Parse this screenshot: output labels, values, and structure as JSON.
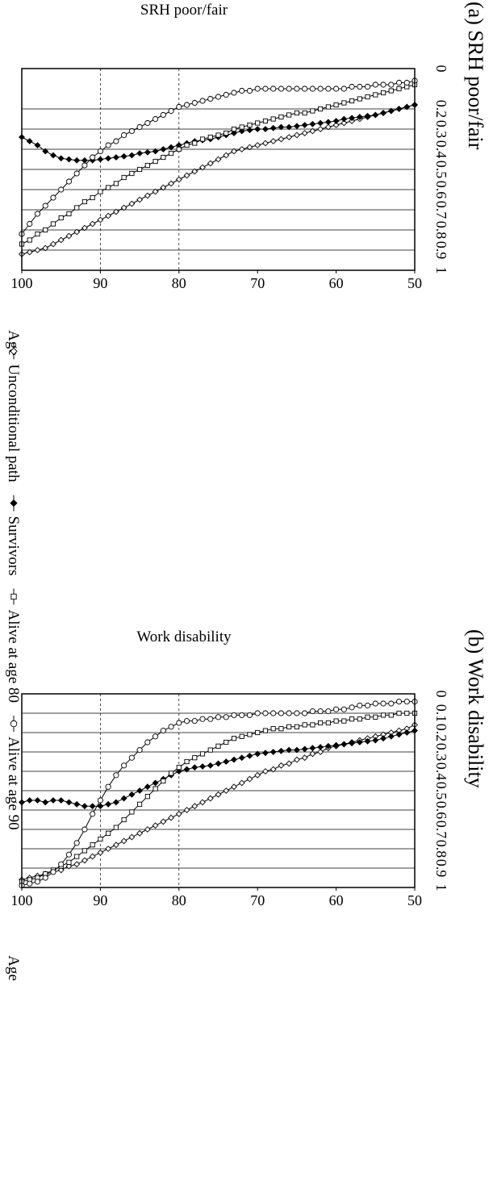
{
  "legend": {
    "items": [
      {
        "label": "Unconditional path",
        "marker": "diamond-open"
      },
      {
        "label": "Survivors",
        "marker": "diamond-filled"
      },
      {
        "label": "Alive at age 80",
        "marker": "square-open"
      },
      {
        "label": "Alive at age 90",
        "marker": "circle-open"
      }
    ]
  },
  "colors": {
    "ink": "#000000",
    "paper": "#ffffff",
    "grid": "#000000"
  },
  "chart_data": [
    {
      "type": "line",
      "title": "(a) SRH poor/fair",
      "xlabel": "Age",
      "ylabel": "SRH poor/fair",
      "xlim": [
        50,
        100
      ],
      "ylim": [
        0,
        1
      ],
      "x_ticks": [
        50,
        60,
        70,
        80,
        90,
        100
      ],
      "y_ticks": [
        0,
        0.2,
        0.3,
        0.4,
        0.5,
        0.6,
        0.7,
        0.8,
        0.9,
        1
      ],
      "x_tick_labels": [
        "50",
        "60",
        "70",
        "80",
        "90",
        "100"
      ],
      "y_tick_labels": [
        "0",
        "0.2",
        "0.3",
        "0.4",
        "0.5",
        "0.6",
        "0.7",
        "0.8",
        "0.9",
        "1"
      ],
      "grid": {
        "horizontal": true,
        "vertical_dashed_at": [
          80,
          90
        ]
      },
      "x": [
        50,
        51,
        52,
        53,
        54,
        55,
        56,
        57,
        58,
        59,
        60,
        61,
        62,
        63,
        64,
        65,
        66,
        67,
        68,
        69,
        70,
        71,
        72,
        73,
        74,
        75,
        76,
        77,
        78,
        79,
        80,
        81,
        82,
        83,
        84,
        85,
        86,
        87,
        88,
        89,
        90,
        91,
        92,
        93,
        94,
        95,
        96,
        97,
        98,
        99,
        100
      ],
      "series": [
        {
          "name": "Unconditional path",
          "marker": "diamond-open",
          "values": [
            0.18,
            0.19,
            0.2,
            0.21,
            0.22,
            0.23,
            0.24,
            0.25,
            0.26,
            0.27,
            0.28,
            0.29,
            0.3,
            0.31,
            0.32,
            0.33,
            0.34,
            0.35,
            0.36,
            0.37,
            0.38,
            0.39,
            0.4,
            0.41,
            0.43,
            0.45,
            0.47,
            0.49,
            0.51,
            0.53,
            0.55,
            0.57,
            0.59,
            0.61,
            0.63,
            0.65,
            0.67,
            0.69,
            0.71,
            0.73,
            0.75,
            0.77,
            0.79,
            0.81,
            0.83,
            0.85,
            0.87,
            0.89,
            0.9,
            0.91,
            0.92
          ]
        },
        {
          "name": "Survivors",
          "marker": "diamond-filled",
          "values": [
            0.18,
            0.19,
            0.2,
            0.21,
            0.22,
            0.23,
            0.235,
            0.24,
            0.245,
            0.25,
            0.26,
            0.265,
            0.27,
            0.275,
            0.28,
            0.285,
            0.29,
            0.29,
            0.295,
            0.3,
            0.3,
            0.305,
            0.31,
            0.32,
            0.33,
            0.34,
            0.35,
            0.355,
            0.36,
            0.37,
            0.38,
            0.39,
            0.4,
            0.41,
            0.415,
            0.42,
            0.43,
            0.435,
            0.44,
            0.445,
            0.45,
            0.455,
            0.455,
            0.455,
            0.45,
            0.445,
            0.43,
            0.41,
            0.38,
            0.36,
            0.34
          ]
        },
        {
          "name": "Alive at age 80",
          "marker": "square-open",
          "values": [
            0.08,
            0.09,
            0.1,
            0.11,
            0.12,
            0.13,
            0.14,
            0.15,
            0.16,
            0.17,
            0.18,
            0.19,
            0.2,
            0.21,
            0.22,
            0.22,
            0.23,
            0.24,
            0.25,
            0.26,
            0.27,
            0.28,
            0.29,
            0.3,
            0.32,
            0.33,
            0.34,
            0.35,
            0.37,
            0.38,
            0.4,
            0.42,
            0.44,
            0.46,
            0.48,
            0.5,
            0.52,
            0.54,
            0.57,
            0.59,
            0.61,
            0.64,
            0.66,
            0.69,
            0.72,
            0.74,
            0.77,
            0.8,
            0.82,
            0.85,
            0.87
          ]
        },
        {
          "name": "Alive at age 90",
          "marker": "circle-open",
          "values": [
            0.06,
            0.07,
            0.07,
            0.08,
            0.08,
            0.08,
            0.09,
            0.09,
            0.09,
            0.1,
            0.1,
            0.1,
            0.1,
            0.1,
            0.1,
            0.1,
            0.1,
            0.1,
            0.1,
            0.1,
            0.1,
            0.11,
            0.11,
            0.12,
            0.13,
            0.14,
            0.15,
            0.16,
            0.17,
            0.18,
            0.19,
            0.21,
            0.23,
            0.25,
            0.27,
            0.29,
            0.31,
            0.33,
            0.36,
            0.38,
            0.41,
            0.44,
            0.48,
            0.52,
            0.56,
            0.6,
            0.64,
            0.68,
            0.72,
            0.77,
            0.82
          ]
        }
      ]
    },
    {
      "type": "line",
      "title": "(b) Work disability",
      "xlabel": "Age",
      "ylabel": "Work disability",
      "xlim": [
        50,
        100
      ],
      "ylim": [
        0,
        1
      ],
      "x_ticks": [
        50,
        60,
        70,
        80,
        90,
        100
      ],
      "y_ticks": [
        0,
        0.1,
        0.2,
        0.3,
        0.4,
        0.5,
        0.6,
        0.7,
        0.8,
        0.9,
        1
      ],
      "x_tick_labels": [
        "50",
        "60",
        "70",
        "80",
        "90",
        "100"
      ],
      "y_tick_labels": [
        "0",
        "0.1",
        "0.2",
        "0.3",
        "0.4",
        "0.5",
        "0.6",
        "0.7",
        "0.8",
        "0.9",
        "1"
      ],
      "grid": {
        "horizontal": true,
        "vertical_dashed_at": [
          80,
          90
        ]
      },
      "x": [
        50,
        51,
        52,
        53,
        54,
        55,
        56,
        57,
        58,
        59,
        60,
        61,
        62,
        63,
        64,
        65,
        66,
        67,
        68,
        69,
        70,
        71,
        72,
        73,
        74,
        75,
        76,
        77,
        78,
        79,
        80,
        81,
        82,
        83,
        84,
        85,
        86,
        87,
        88,
        89,
        90,
        91,
        92,
        93,
        94,
        95,
        96,
        97,
        98,
        99,
        100
      ],
      "series": [
        {
          "name": "Unconditional path",
          "marker": "diamond-open",
          "values": [
            0.16,
            0.18,
            0.19,
            0.2,
            0.21,
            0.22,
            0.23,
            0.24,
            0.25,
            0.26,
            0.27,
            0.28,
            0.3,
            0.31,
            0.33,
            0.34,
            0.36,
            0.37,
            0.39,
            0.4,
            0.42,
            0.44,
            0.46,
            0.48,
            0.5,
            0.52,
            0.54,
            0.56,
            0.58,
            0.6,
            0.62,
            0.64,
            0.66,
            0.68,
            0.7,
            0.72,
            0.74,
            0.76,
            0.78,
            0.8,
            0.82,
            0.84,
            0.86,
            0.88,
            0.89,
            0.91,
            0.92,
            0.93,
            0.94,
            0.95,
            0.96
          ]
        },
        {
          "name": "Survivors",
          "marker": "diamond-filled",
          "values": [
            0.19,
            0.2,
            0.21,
            0.22,
            0.23,
            0.24,
            0.245,
            0.25,
            0.255,
            0.26,
            0.265,
            0.27,
            0.275,
            0.28,
            0.285,
            0.29,
            0.29,
            0.295,
            0.3,
            0.305,
            0.31,
            0.32,
            0.33,
            0.34,
            0.35,
            0.36,
            0.37,
            0.375,
            0.38,
            0.39,
            0.4,
            0.42,
            0.44,
            0.46,
            0.48,
            0.5,
            0.52,
            0.54,
            0.56,
            0.57,
            0.58,
            0.58,
            0.58,
            0.57,
            0.56,
            0.55,
            0.55,
            0.56,
            0.55,
            0.55,
            0.56
          ]
        },
        {
          "name": "Alive at age 80",
          "marker": "square-open",
          "values": [
            0.1,
            0.1,
            0.1,
            0.11,
            0.11,
            0.12,
            0.12,
            0.13,
            0.13,
            0.14,
            0.14,
            0.15,
            0.15,
            0.16,
            0.16,
            0.17,
            0.17,
            0.18,
            0.18,
            0.19,
            0.2,
            0.21,
            0.22,
            0.23,
            0.25,
            0.27,
            0.29,
            0.31,
            0.33,
            0.35,
            0.38,
            0.41,
            0.45,
            0.49,
            0.53,
            0.57,
            0.61,
            0.65,
            0.69,
            0.72,
            0.75,
            0.78,
            0.81,
            0.84,
            0.87,
            0.89,
            0.91,
            0.93,
            0.95,
            0.96,
            0.97
          ]
        },
        {
          "name": "Alive at age 90",
          "marker": "circle-open",
          "values": [
            0.04,
            0.04,
            0.04,
            0.05,
            0.05,
            0.05,
            0.06,
            0.06,
            0.07,
            0.08,
            0.08,
            0.09,
            0.09,
            0.09,
            0.1,
            0.1,
            0.1,
            0.1,
            0.1,
            0.1,
            0.1,
            0.11,
            0.11,
            0.11,
            0.12,
            0.12,
            0.13,
            0.13,
            0.14,
            0.14,
            0.15,
            0.17,
            0.19,
            0.22,
            0.25,
            0.29,
            0.33,
            0.37,
            0.42,
            0.48,
            0.55,
            0.62,
            0.7,
            0.77,
            0.83,
            0.88,
            0.92,
            0.95,
            0.97,
            0.98,
            0.99
          ]
        }
      ]
    }
  ]
}
